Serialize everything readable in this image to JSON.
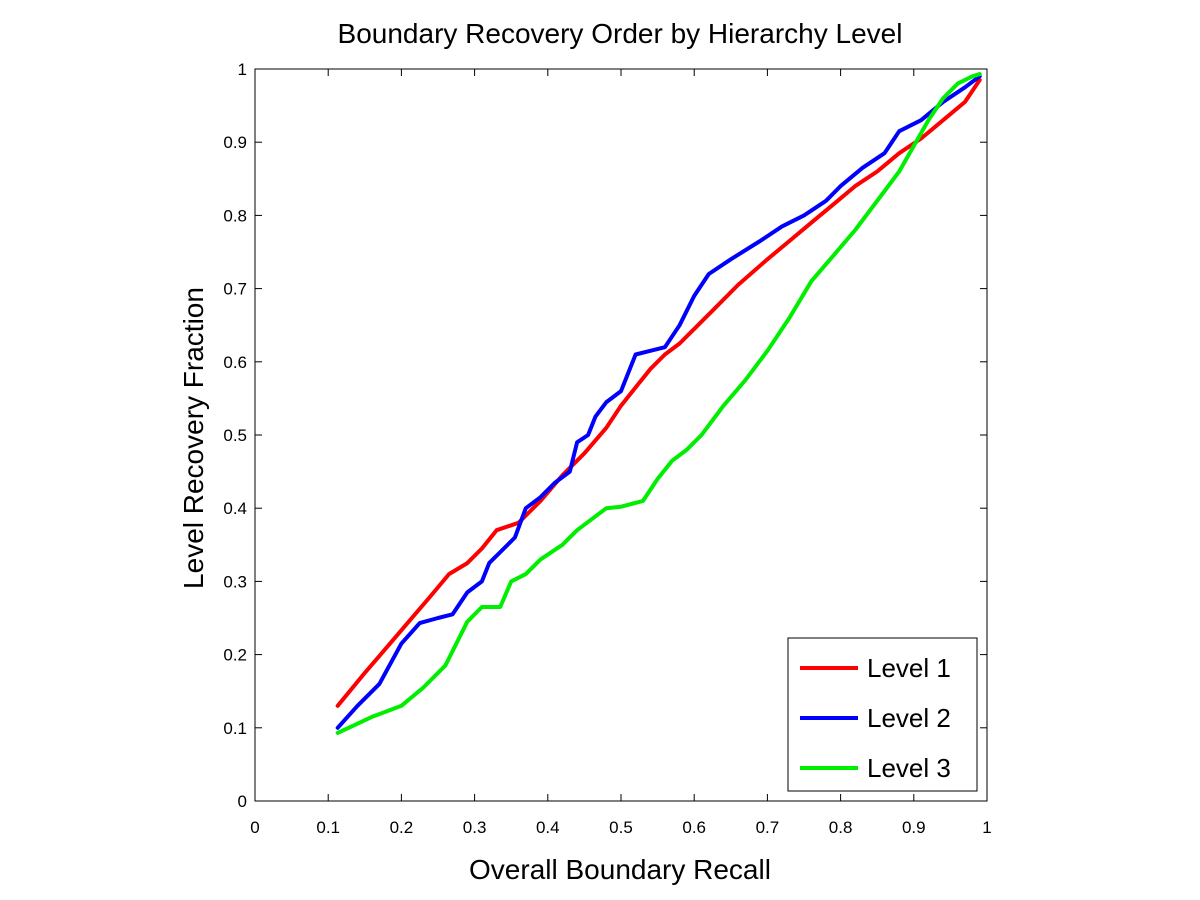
{
  "chart_data": {
    "type": "line",
    "title": "Boundary Recovery Order by Hierarchy Level",
    "xlabel": "Overall Boundary Recall",
    "ylabel": "Level Recovery Fraction",
    "xlim": [
      0,
      1
    ],
    "ylim": [
      0,
      1
    ],
    "xticks": [
      0,
      0.1,
      0.2,
      0.3,
      0.4,
      0.5,
      0.6,
      0.7,
      0.8,
      0.9,
      1
    ],
    "yticks": [
      0,
      0.1,
      0.2,
      0.3,
      0.4,
      0.5,
      0.6,
      0.7,
      0.8,
      0.9,
      1
    ],
    "xtick_labels": [
      "0",
      "0.1",
      "0.2",
      "0.3",
      "0.4",
      "0.5",
      "0.6",
      "0.7",
      "0.8",
      "0.9",
      "1"
    ],
    "ytick_labels": [
      "0",
      "0.1",
      "0.2",
      "0.3",
      "0.4",
      "0.5",
      "0.6",
      "0.7",
      "0.8",
      "0.9",
      "1"
    ],
    "grid": false,
    "legend_position": "bottom-right",
    "series": [
      {
        "name": "Level 1",
        "color": "#ff0000",
        "x": [
          0.113,
          0.15,
          0.18,
          0.21,
          0.24,
          0.265,
          0.29,
          0.31,
          0.33,
          0.36,
          0.39,
          0.42,
          0.45,
          0.48,
          0.5,
          0.52,
          0.54,
          0.56,
          0.58,
          0.6,
          0.63,
          0.66,
          0.7,
          0.73,
          0.76,
          0.79,
          0.82,
          0.85,
          0.88,
          0.91,
          0.94,
          0.97,
          0.99
        ],
        "y": [
          0.13,
          0.175,
          0.21,
          0.245,
          0.28,
          0.31,
          0.325,
          0.345,
          0.37,
          0.38,
          0.41,
          0.445,
          0.475,
          0.51,
          0.54,
          0.565,
          0.59,
          0.61,
          0.625,
          0.645,
          0.675,
          0.705,
          0.74,
          0.765,
          0.79,
          0.815,
          0.84,
          0.86,
          0.885,
          0.905,
          0.93,
          0.955,
          0.985
        ]
      },
      {
        "name": "Level 2",
        "color": "#0000ff",
        "x": [
          0.113,
          0.14,
          0.17,
          0.2,
          0.225,
          0.25,
          0.27,
          0.29,
          0.31,
          0.32,
          0.34,
          0.355,
          0.37,
          0.39,
          0.41,
          0.43,
          0.44,
          0.455,
          0.465,
          0.48,
          0.5,
          0.52,
          0.54,
          0.56,
          0.58,
          0.6,
          0.62,
          0.65,
          0.69,
          0.72,
          0.75,
          0.78,
          0.8,
          0.83,
          0.86,
          0.88,
          0.91,
          0.94,
          0.97,
          0.99
        ],
        "y": [
          0.1,
          0.13,
          0.16,
          0.215,
          0.243,
          0.25,
          0.255,
          0.285,
          0.3,
          0.325,
          0.345,
          0.36,
          0.4,
          0.415,
          0.435,
          0.45,
          0.49,
          0.5,
          0.525,
          0.545,
          0.56,
          0.61,
          0.615,
          0.62,
          0.65,
          0.69,
          0.72,
          0.74,
          0.765,
          0.785,
          0.8,
          0.82,
          0.84,
          0.865,
          0.885,
          0.915,
          0.93,
          0.955,
          0.975,
          0.99
        ]
      },
      {
        "name": "Level 3",
        "color": "#00ee00",
        "x": [
          0.113,
          0.16,
          0.2,
          0.23,
          0.26,
          0.29,
          0.31,
          0.335,
          0.35,
          0.37,
          0.39,
          0.42,
          0.44,
          0.46,
          0.48,
          0.5,
          0.53,
          0.55,
          0.57,
          0.59,
          0.61,
          0.64,
          0.67,
          0.7,
          0.73,
          0.76,
          0.79,
          0.82,
          0.85,
          0.88,
          0.9,
          0.92,
          0.94,
          0.96,
          0.98,
          0.99
        ],
        "y": [
          0.093,
          0.115,
          0.13,
          0.155,
          0.185,
          0.245,
          0.265,
          0.265,
          0.3,
          0.31,
          0.33,
          0.35,
          0.37,
          0.385,
          0.4,
          0.402,
          0.41,
          0.44,
          0.465,
          0.48,
          0.5,
          0.54,
          0.575,
          0.615,
          0.66,
          0.71,
          0.745,
          0.78,
          0.82,
          0.86,
          0.895,
          0.93,
          0.96,
          0.98,
          0.99,
          0.993
        ]
      }
    ]
  }
}
